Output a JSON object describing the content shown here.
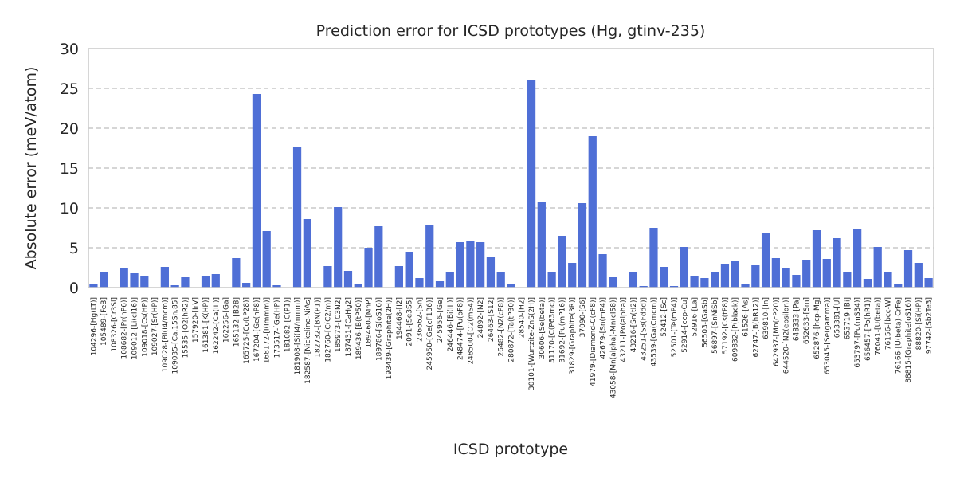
{
  "chart_data": {
    "type": "bar",
    "title": "Prediction error for ICSD prototypes (Hg, gtinv-235)",
    "xlabel": "ICSD prototype",
    "ylabel": "Absolute error (meV/atom)",
    "ylim": [
      0,
      30
    ],
    "yticks": [
      0,
      5,
      10,
      15,
      20,
      25,
      30
    ],
    "grid": "y-dashed",
    "bar_color": "#4f6fd6",
    "categories": [
      "104296-[Hg(LT)]",
      "105489-[FeB]",
      "108326-[Cr3Si]",
      "108682-[Pr(hP6)]",
      "109012-[Li(cI16)]",
      "109018-[Cs(HP)]",
      "109027-[Sr(HP)]",
      "109028-[Bi(I4/mcm)]",
      "109035-[Ca.15Sn.85]",
      "15535-[O2(hR2)]",
      "157920-[IrV]",
      "161381-[K(HP)]",
      "162242-[Ca(III)]",
      "162256-[Ga]",
      "165132-[B28]",
      "165725-[Co(tP28)]",
      "167204-[Ge(hP8)]",
      "168172-[I(Immm)]",
      "173517-[Ge(HP)]",
      "181082-[C(P1)]",
      "181908-[Si(I4/mmm)]",
      "182587-[Nickeline-NiAs]",
      "182732-[BN(P1)]",
      "182760-[C(C2/m)]",
      "185973-[C3N2]",
      "187431-[CaHg2]",
      "189436-[B(tP50)]",
      "189460-[MnP]",
      "189786-[S(oS16)]",
      "193439-[Graphite(2H)]",
      "194468-[I2]",
      "2091-[Se3S5]",
      "236662-[Sn]",
      "245950-[Ge(cF136)]",
      "245956-[Ge]",
      "246446-[Bi(III)]",
      "248474-[Pu(oF8)]",
      "248500-[O2(mS4)]",
      "24892-[N2]",
      "26463-[S12]",
      "26482-[N2(cP8)]",
      "280872-[Ta(tP30)]",
      "28540-[H2]",
      "30101-[Wurtzite-ZnS(2H)]",
      "30606-[Se(beta)]",
      "31170-[C(P63mc)]",
      "31692-[Pu(mP16)]",
      "31829-[Graphite(3R)]",
      "37090-[S6]",
      "41979-[Diamond-C(cF8)]",
      "42679-[Sn(mP4)]",
      "43058-[Mn(alpha)-Mn(cI58)]",
      "43211-[Po(alpha)]",
      "43216-[Sn(tI2)]",
      "43251-[S8(Fddd)]",
      "43539-[Ga(Cmcm)]",
      "52412-[Sc]",
      "52501-[Te(mP4)]",
      "52914-[ccp-Cu]",
      "52916-[La]",
      "56503-[GaSb]",
      "56897-[SnNiSb]",
      "57192-[Cs(tP8)]",
      "609832-[P(black)]",
      "61526-[As]",
      "62747-[B(hR12)]",
      "639810-[In]",
      "642937-[Mn(cP20)]",
      "644520-[N2(epsilon)]",
      "648333-[Pa]",
      "652633-[Sm]",
      "652876-[hcp-Mg]",
      "653045-[Se(gamma)]",
      "653381-[U]",
      "653719-[Bi]",
      "653797-[Pu(mS34)]",
      "656457-[Po(hR1)]",
      "76041-[U(beta)]",
      "76156-[bcc-W]",
      "76166-[U(beta)-CrFe]",
      "88815-[Graphite(oS16)]",
      "88820-[Si(HP)]",
      "97742-[Sb2Te3]"
    ],
    "values": [
      0.4,
      2.0,
      0.05,
      2.5,
      1.8,
      1.4,
      0.05,
      2.6,
      0.3,
      1.3,
      0.05,
      1.5,
      1.7,
      0.05,
      3.7,
      0.6,
      24.3,
      7.1,
      0.3,
      0.05,
      17.6,
      8.6,
      0.05,
      2.7,
      10.1,
      2.1,
      0.4,
      5.0,
      7.7,
      0.05,
      2.7,
      4.5,
      1.2,
      7.8,
      0.8,
      1.9,
      5.7,
      5.8,
      5.7,
      3.8,
      2.0,
      0.4,
      0.05,
      26.1,
      10.8,
      2.0,
      6.5,
      3.1,
      10.6,
      19.0,
      4.2,
      1.3,
      0.05,
      2.0,
      0.2,
      7.5,
      2.6,
      0.2,
      5.1,
      1.5,
      1.2,
      2.0,
      3.0,
      3.3,
      0.5,
      2.8,
      6.9,
      3.7,
      2.4,
      1.6,
      3.5,
      7.2,
      3.6,
      6.2,
      2.0,
      7.3,
      1.1,
      5.1,
      1.9,
      0.5,
      4.7,
      3.1,
      1.2
    ]
  }
}
